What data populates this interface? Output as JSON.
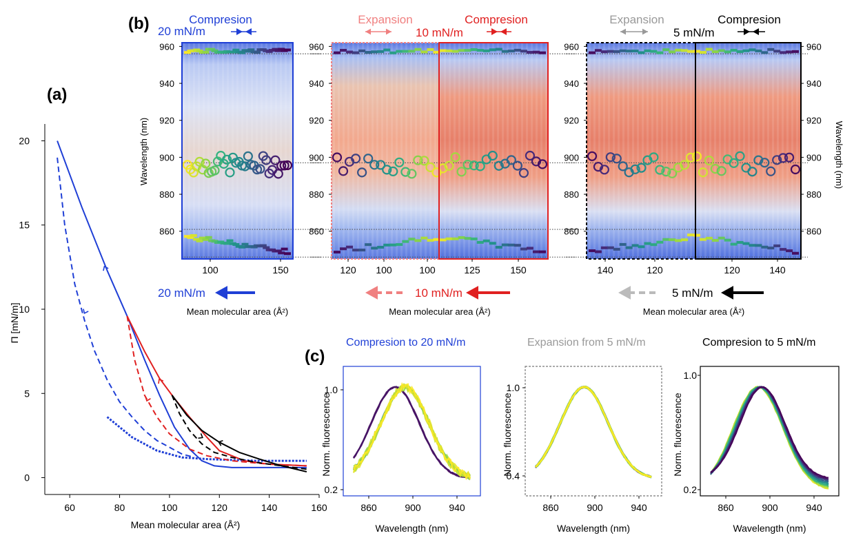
{
  "chart_data": [
    {
      "panel_label": "(a)",
      "type": "line",
      "xlabel": "Mean molecular area (Å²)",
      "ylabel": "Π [mN/m]",
      "xlim": [
        50,
        160
      ],
      "ylim": [
        -1,
        21
      ],
      "x_ticks": [
        "60",
        "80",
        "100",
        "120",
        "140",
        "160"
      ],
      "y_ticks": [
        "0",
        "5",
        "10",
        "15",
        "20"
      ],
      "series": [
        {
          "color": "#1f3fd6",
          "style": "solid",
          "x": [
            55,
            65,
            75,
            83,
            90,
            96,
            102,
            108,
            113,
            118,
            125,
            135,
            145,
            155
          ],
          "y": [
            20,
            16,
            12.3,
            9.6,
            7,
            4.9,
            3,
            1.7,
            1,
            0.7,
            0.6,
            0.6,
            0.6,
            0.6
          ]
        },
        {
          "color": "#1f3fd6",
          "style": "dashed",
          "x": [
            55,
            58,
            62,
            66,
            70,
            75,
            80,
            85,
            90,
            95,
            100,
            105,
            110
          ],
          "y": [
            19,
            15,
            11.5,
            9.3,
            7.5,
            5.8,
            4.5,
            3.6,
            2.8,
            2.2,
            1.8,
            1.4,
            1.2
          ]
        },
        {
          "color": "#1f3fd6",
          "style": "dotted",
          "x": [
            75,
            85,
            95,
            105,
            115,
            125,
            135,
            145,
            155
          ],
          "y": [
            3.6,
            2.4,
            1.6,
            1.2,
            1.1,
            1.05,
            1.0,
            1.0,
            1.0
          ]
        },
        {
          "color": "#e02020",
          "style": "solid",
          "x": [
            83,
            90,
            96,
            102,
            108,
            115,
            120,
            130,
            140,
            155
          ],
          "y": [
            9.6,
            7.5,
            5.9,
            4.7,
            3.6,
            2.4,
            1.6,
            1.0,
            0.8,
            0.7
          ]
        },
        {
          "color": "#e02020",
          "style": "dashed",
          "x": [
            83,
            86,
            90,
            95,
            100,
            108,
            115,
            125,
            140,
            155
          ],
          "y": [
            9.6,
            7,
            4.9,
            3.6,
            2.6,
            1.7,
            1.3,
            1.0,
            0.8,
            0.7
          ]
        },
        {
          "color": "#000000",
          "style": "solid",
          "x": [
            101,
            107,
            113,
            120,
            128,
            136,
            145,
            155
          ],
          "y": [
            4.9,
            3.7,
            2.8,
            2.1,
            1.5,
            1.1,
            0.7,
            0.35
          ]
        },
        {
          "color": "#000000",
          "style": "dashed",
          "x": [
            101,
            104,
            108,
            113,
            118,
            125,
            135,
            145,
            155
          ],
          "y": [
            4.9,
            3.8,
            2.8,
            2.0,
            1.5,
            1.2,
            0.9,
            0.7,
            0.5
          ]
        }
      ]
    },
    {
      "panel_label": "(b)",
      "type": "heatmap",
      "xlabel": "Mean molecular area (Å²)",
      "ylabel": "Wavelength (nm)",
      "ylim": [
        845,
        962
      ],
      "y_ticks": [
        "860",
        "880",
        "900",
        "920",
        "940",
        "960"
      ],
      "guide_lines_nm": [
        956,
        897,
        861,
        846
      ],
      "sub_panels": [
        {
          "headers": [
            {
              "text": "Compresion",
              "color": "#1f3fd6"
            }
          ],
          "pressure_label": "20 mN/m",
          "color": "#1f3fd6",
          "arrow_label": "20 mN/m",
          "x_ticks": [
            "100",
            "150"
          ]
        },
        {
          "headers": [
            {
              "text": "Expansion",
              "color": "#f08080"
            },
            {
              "text": "Compresion",
              "color": "#e02020"
            }
          ],
          "pressure_label": "10 mN/m",
          "color": "#e02020",
          "arrow_label": "10 mN/m",
          "x_ticks": [
            "120",
            "100",
            "100",
            "125",
            "150"
          ]
        },
        {
          "headers": [
            {
              "text": "Expansion",
              "color": "#999999"
            },
            {
              "text": "Compresion",
              "color": "#000000"
            }
          ],
          "pressure_label": "5 mN/m",
          "color": "#000000",
          "arrow_label": "5 mN/m",
          "x_ticks": [
            "140",
            "120",
            "120",
            "140"
          ]
        }
      ]
    },
    {
      "panel_label": "(c)",
      "type": "line",
      "xlabel": "Wavelength (nm)",
      "ylabel": "Norm. fluorescence",
      "x_ticks": [
        "860",
        "900",
        "940"
      ],
      "sub_panels": [
        {
          "title": "Compresion to 20 mN/m",
          "title_color": "#1f3fd6",
          "y_ticks": [
            "1.0",
            "0.2"
          ],
          "frame": "#1f3fd6"
        },
        {
          "title": "Expansion from 5 mN/m",
          "title_color": "#999999",
          "y_ticks": [
            "1.0",
            "0.4"
          ],
          "frame": "#777777"
        },
        {
          "title": "Compresion to 5 mN/m",
          "title_color": "#000000",
          "y_ticks": [
            "1.0",
            "0.2"
          ],
          "frame": "#000000"
        }
      ]
    }
  ]
}
